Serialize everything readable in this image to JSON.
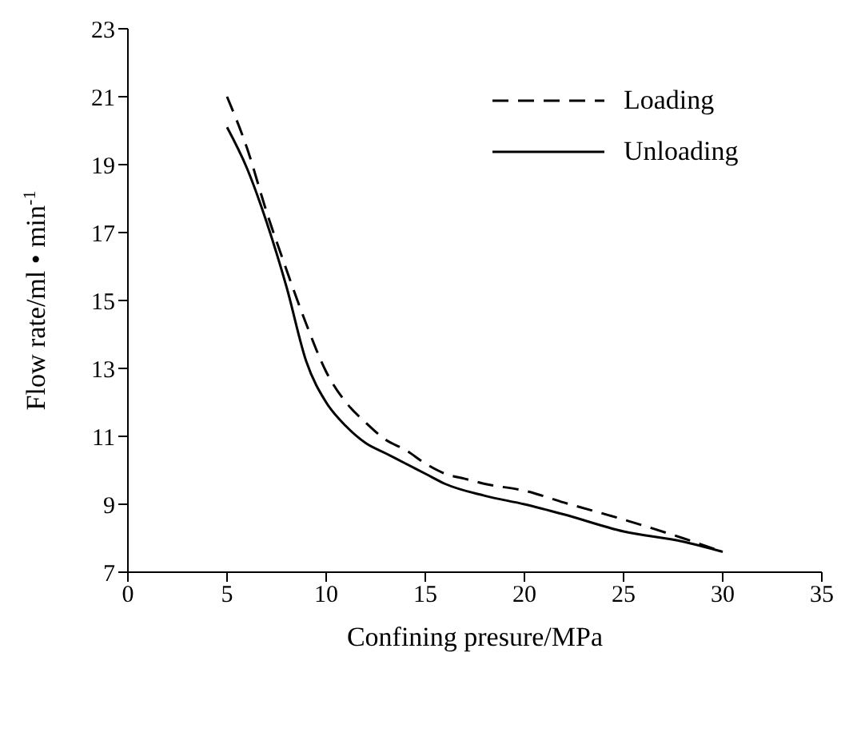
{
  "chart_data": {
    "type": "line",
    "xlabel": "Confining presure/MPa",
    "ylabel": "Flow rate/ml • min$^{-1}$",
    "xlim": [
      0,
      35
    ],
    "xticks": [
      0,
      5,
      10,
      15,
      20,
      25,
      30,
      35
    ],
    "ylim": [
      7,
      23
    ],
    "yticks": [
      7,
      9,
      11,
      13,
      15,
      17,
      19,
      21,
      23
    ],
    "grid": false,
    "legend": "top right",
    "marker": "none",
    "series": [
      {
        "name": "Loading",
        "color": "#000000",
        "line_style": "dashed",
        "x": [
          5,
          6,
          7,
          8,
          9,
          10,
          11,
          12,
          13,
          14,
          15,
          16,
          17,
          18,
          20,
          22,
          25,
          28,
          30
        ],
        "values": [
          21.0,
          19.5,
          17.6,
          15.9,
          14.3,
          12.9,
          12.0,
          11.4,
          10.9,
          10.6,
          10.2,
          9.9,
          9.75,
          9.6,
          9.4,
          9.05,
          8.55,
          8.0,
          7.6
        ]
      },
      {
        "name": "Unloading",
        "color": "#000000",
        "line_style": "solid",
        "x": [
          5,
          6,
          7,
          8,
          9,
          10,
          11,
          12,
          13,
          14,
          15,
          16,
          18,
          20,
          22,
          25,
          28,
          30
        ],
        "values": [
          20.1,
          18.9,
          17.3,
          15.4,
          13.2,
          12.0,
          11.3,
          10.8,
          10.5,
          10.2,
          9.9,
          9.6,
          9.25,
          9.0,
          8.7,
          8.2,
          7.9,
          7.6
        ]
      }
    ]
  }
}
